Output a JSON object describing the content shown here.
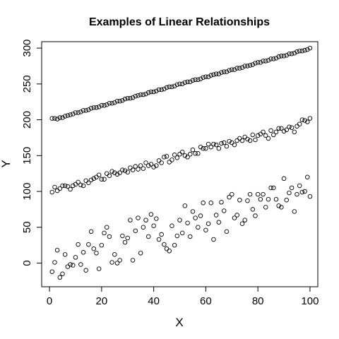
{
  "chart_data": {
    "type": "scatter",
    "title": "Examples of Linear Relationships",
    "xlabel": "X",
    "ylabel": "Y",
    "xlim": [
      -3,
      103
    ],
    "ylim": [
      -33,
      309
    ],
    "x_ticks": [
      0,
      20,
      40,
      60,
      80,
      100
    ],
    "y_ticks": [
      0,
      50,
      100,
      150,
      200,
      250,
      300
    ],
    "grid": false,
    "legend": "none",
    "marker": "open-circle",
    "series": [
      {
        "x": [
          1,
          2,
          3,
          4,
          5,
          6,
          7,
          8,
          9,
          10,
          11,
          12,
          13,
          14,
          15,
          16,
          17,
          18,
          19,
          20,
          21,
          22,
          23,
          24,
          25,
          26,
          27,
          28,
          29,
          30,
          31,
          32,
          33,
          34,
          35,
          36,
          37,
          38,
          39,
          40,
          41,
          42,
          43,
          44,
          45,
          46,
          47,
          48,
          49,
          50,
          51,
          52,
          53,
          54,
          55,
          56,
          57,
          58,
          59,
          60,
          61,
          62,
          63,
          64,
          65,
          66,
          67,
          68,
          69,
          70,
          71,
          72,
          73,
          74,
          75,
          76,
          77,
          78,
          79,
          80,
          81,
          82,
          83,
          84,
          85,
          86,
          87,
          88,
          89,
          90,
          91,
          92,
          93,
          94,
          95,
          96,
          97,
          98,
          99,
          100
        ],
        "values": [
          202,
          202,
          201,
          203,
          203,
          205,
          206,
          207,
          208,
          210,
          210,
          211,
          213,
          213,
          214,
          216,
          217,
          217,
          218,
          220,
          220,
          221,
          223,
          223,
          224,
          226,
          226,
          227,
          229,
          230,
          230,
          231,
          233,
          234,
          235,
          235,
          236,
          238,
          239,
          239,
          240,
          242,
          242,
          243,
          245,
          246,
          246,
          247,
          249,
          250,
          250,
          252,
          253,
          253,
          255,
          256,
          256,
          257,
          259,
          260,
          260,
          262,
          263,
          264,
          264,
          266,
          267,
          267,
          269,
          270,
          270,
          272,
          272,
          273,
          275,
          275,
          276,
          277,
          279,
          280,
          280,
          282,
          282,
          283,
          285,
          285,
          286,
          288,
          289,
          289,
          290,
          292,
          292,
          293,
          295,
          296,
          296,
          297,
          298,
          300
        ]
      },
      {
        "x": [
          1,
          2,
          3,
          4,
          5,
          6,
          7,
          8,
          9,
          10,
          11,
          12,
          13,
          14,
          15,
          16,
          17,
          18,
          19,
          20,
          21,
          22,
          23,
          24,
          25,
          26,
          27,
          28,
          29,
          30,
          31,
          32,
          33,
          34,
          35,
          36,
          37,
          38,
          39,
          40,
          41,
          42,
          43,
          44,
          45,
          46,
          47,
          48,
          49,
          50,
          51,
          52,
          53,
          54,
          55,
          56,
          57,
          58,
          59,
          60,
          61,
          62,
          63,
          64,
          65,
          66,
          67,
          68,
          69,
          70,
          71,
          72,
          73,
          74,
          75,
          76,
          77,
          78,
          79,
          80,
          81,
          82,
          83,
          84,
          85,
          86,
          87,
          88,
          89,
          90,
          91,
          92,
          93,
          94,
          95,
          96,
          97,
          98,
          99,
          100
        ],
        "values": [
          99,
          106,
          101,
          104,
          108,
          108,
          107,
          103,
          108,
          110,
          113,
          109,
          108,
          115,
          112,
          116,
          118,
          120,
          123,
          117,
          117,
          125,
          122,
          128,
          126,
          124,
          126,
          130,
          129,
          127,
          133,
          130,
          135,
          131,
          136,
          132,
          140,
          136,
          138,
          134,
          136,
          143,
          140,
          148,
          149,
          141,
          144,
          151,
          147,
          152,
          155,
          150,
          148,
          152,
          158,
          153,
          153,
          162,
          160,
          160,
          166,
          162,
          166,
          165,
          160,
          167,
          168,
          163,
          170,
          168,
          165,
          171,
          174,
          171,
          176,
          173,
          171,
          179,
          172,
          178,
          180,
          183,
          178,
          174,
          185,
          179,
          183,
          188,
          188,
          184,
          186,
          190,
          189,
          183,
          191,
          194,
          200,
          199,
          197,
          202
        ]
      },
      {
        "x": [
          1,
          2,
          3,
          4,
          5,
          6,
          7,
          8,
          9,
          10,
          11,
          12,
          13,
          14,
          15,
          16,
          17,
          18,
          19,
          20,
          21,
          22,
          23,
          24,
          25,
          26,
          27,
          28,
          29,
          30,
          31,
          32,
          33,
          34,
          35,
          36,
          37,
          38,
          39,
          40,
          41,
          42,
          43,
          44,
          45,
          46,
          47,
          48,
          49,
          50,
          51,
          52,
          53,
          54,
          55,
          56,
          57,
          58,
          59,
          60,
          61,
          62,
          63,
          64,
          65,
          66,
          67,
          68,
          69,
          70,
          71,
          72,
          73,
          74,
          75,
          76,
          77,
          78,
          79,
          80,
          81,
          82,
          83,
          84,
          85,
          86,
          87,
          88,
          89,
          90,
          91,
          92,
          93,
          94,
          95,
          96,
          97,
          98,
          99,
          100
        ],
        "values": [
          -12,
          1,
          18,
          -20,
          -15,
          12,
          -5,
          -2,
          -3,
          8,
          26,
          -2,
          15,
          -10,
          26,
          44,
          20,
          14,
          -8,
          25,
          42,
          50,
          37,
          1,
          12,
          0,
          4,
          38,
          29,
          35,
          60,
          4,
          45,
          63,
          14,
          50,
          60,
          37,
          68,
          52,
          62,
          33,
          40,
          26,
          20,
          17,
          52,
          25,
          38,
          60,
          42,
          80,
          56,
          37,
          72,
          63,
          50,
          66,
          84,
          46,
          55,
          84,
          33,
          67,
          57,
          85,
          73,
          44,
          92,
          96,
          63,
          67,
          88,
          55,
          60,
          87,
          96,
          75,
          66,
          96,
          89,
          96,
          78,
          89,
          105,
          105,
          89,
          80,
          78,
          118,
          88,
          98,
          105,
          72,
          96,
          108,
          99,
          100,
          120,
          93
        ]
      }
    ]
  }
}
